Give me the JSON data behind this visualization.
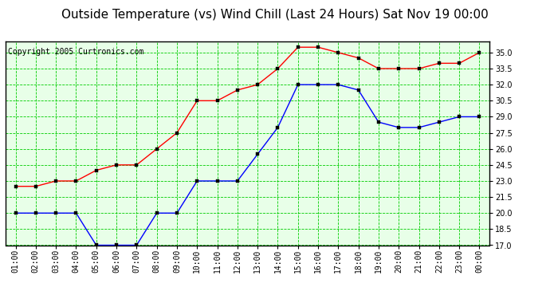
{
  "title": "Outside Temperature (vs) Wind Chill (Last 24 Hours) Sat Nov 19 00:00",
  "copyright": "Copyright 2005 Curtronics.com",
  "x_labels": [
    "01:00",
    "02:00",
    "03:00",
    "04:00",
    "05:00",
    "06:00",
    "07:00",
    "08:00",
    "09:00",
    "10:00",
    "11:00",
    "12:00",
    "13:00",
    "14:00",
    "15:00",
    "16:00",
    "17:00",
    "18:00",
    "19:00",
    "20:00",
    "21:00",
    "22:00",
    "23:00",
    "00:00"
  ],
  "red_data": [
    22.5,
    22.5,
    23.0,
    23.0,
    24.0,
    24.5,
    24.5,
    26.0,
    27.5,
    30.5,
    30.5,
    31.5,
    32.0,
    33.5,
    35.5,
    35.5,
    35.0,
    34.5,
    33.5,
    33.5,
    33.5,
    34.0,
    34.0,
    35.0
  ],
  "blue_data": [
    20.0,
    20.0,
    20.0,
    20.0,
    17.0,
    17.0,
    17.0,
    20.0,
    20.0,
    23.0,
    23.0,
    23.0,
    25.5,
    28.0,
    32.0,
    32.0,
    32.0,
    31.5,
    28.5,
    28.0,
    28.0,
    28.5,
    29.0,
    29.0
  ],
  "ylim": [
    17.0,
    36.0
  ],
  "yticks": [
    17.0,
    18.5,
    20.0,
    21.5,
    23.0,
    24.5,
    26.0,
    27.5,
    29.0,
    30.5,
    32.0,
    33.5,
    35.0
  ],
  "red_color": "#ff0000",
  "blue_color": "#0000ff",
  "bg_color": "#ffffff",
  "plot_bg_color": "#e8ffe8",
  "grid_color": "#00cc00",
  "border_color": "#000000",
  "title_fontsize": 11,
  "copyright_fontsize": 7,
  "tick_fontsize": 7,
  "figwidth": 6.9,
  "figheight": 3.75,
  "dpi": 100
}
